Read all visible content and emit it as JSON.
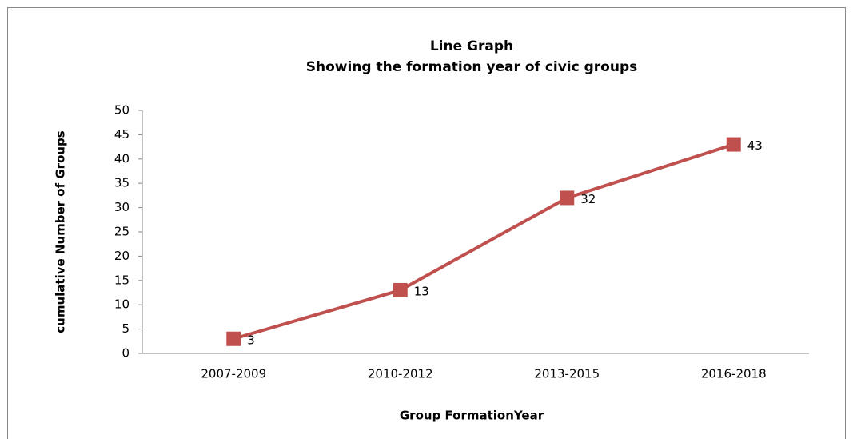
{
  "chart_data": {
    "type": "line",
    "title": "Line Graph",
    "subtitle": "Showing the formation year of civic groups",
    "x_label": "Group FormationYear",
    "y_label": "cumulative Number of Groups",
    "categories": [
      "2007-2009",
      "2010-2012",
      "2013-2015",
      "2016-2018"
    ],
    "series": [
      {
        "name": "cumulative Number of Groups",
        "color": "#c0504d",
        "values": [
          3,
          13,
          32,
          43
        ]
      }
    ],
    "ylim": [
      0,
      50
    ],
    "yticks": [
      0,
      5,
      10,
      15,
      20,
      25,
      30,
      35,
      40,
      45,
      50
    ],
    "grid": false,
    "legend": false
  }
}
